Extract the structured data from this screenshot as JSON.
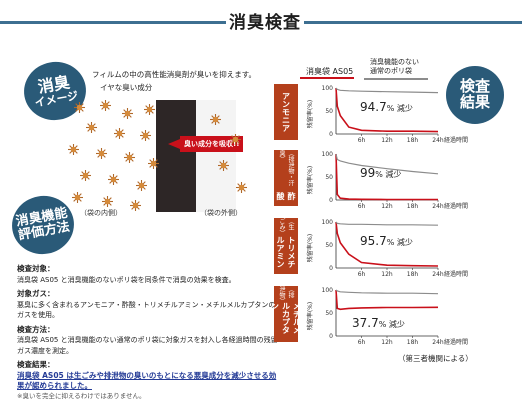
{
  "header": {
    "title": "消臭検査"
  },
  "badges": {
    "image_line1": "消臭",
    "image_line2": "イメージ",
    "method_line1": "消臭機能",
    "method_line2": "評価方法",
    "result_line1": "検査",
    "result_line2": "結果"
  },
  "image": {
    "line1": "フィルムの中の高性能消臭剤が臭いを抑えます。",
    "line2": "イヤな臭い成分",
    "absorb": "臭い成分を吸収!!",
    "inside": "（袋の内側）",
    "outside": "（袋の外側）"
  },
  "method": {
    "sections": [
      {
        "h": "検査対象：",
        "body": "消臭袋 AS05 と消臭機能のないポリ袋を同条件で消臭の効果を検査。"
      },
      {
        "h": "対象ガス：",
        "body": "悪臭に多く含まれるアンモニア・酢酸・トリメチルアミン・メチルメルカプタンのガスを使用。"
      },
      {
        "h": "検査方法：",
        "body": "消臭袋 AS05 と消臭機能のない通常のポリ袋に対象ガスを封入し各経過時間の残留ガス濃度を測定。"
      }
    ],
    "result_h": "検査結果：",
    "result_body": "消臭袋 AS05 は生ごみや排泄物の臭いのもとになる悪臭成分を減少させる効果が認められました。",
    "note": "※臭いを完全に抑えるわけではありません。"
  },
  "legend": {
    "a": "消臭袋 AS05",
    "b_line1": "消臭機能のない",
    "b_line2": "通常のポリ袋"
  },
  "source": "（第三者機関による）",
  "colors": {
    "accent": "#2a5a78",
    "red": "#c9101a",
    "label": "#b4401c",
    "gray": "#8c8c8c"
  },
  "chart_data": [
    {
      "type": "line",
      "label": "アンモニア",
      "sub": "",
      "reduction_num": "94.7",
      "reduction_unit": "% 減少",
      "ylabel": "残留率(%)",
      "xlabel": "経過時間",
      "yticks": [
        "100",
        "50",
        "0"
      ],
      "xticks": [
        "6h",
        "12h",
        "18h",
        "24h"
      ],
      "ylim": [
        0,
        100
      ],
      "x": [
        0,
        0.3,
        1,
        3,
        6,
        12,
        18,
        24
      ],
      "series": [
        {
          "name": "消臭袋 AS05",
          "values": [
            100,
            60,
            40,
            15,
            8,
            6,
            6,
            5.3
          ]
        },
        {
          "name": "通常のポリ袋",
          "values": [
            100,
            97,
            95,
            94,
            93,
            92,
            91,
            90
          ]
        }
      ]
    },
    {
      "type": "line",
      "label": "酢酸",
      "sub": "（排泄物・汗臭）",
      "reduction_num": "99",
      "reduction_unit": "% 減少",
      "ylabel": "残留率(%)",
      "xlabel": "経過時間",
      "yticks": [
        "100",
        "50",
        "0"
      ],
      "xticks": [
        "6h",
        "12h",
        "18h",
        "24h"
      ],
      "ylim": [
        0,
        100
      ],
      "x": [
        0,
        0.3,
        1,
        3,
        6,
        12,
        18,
        24
      ],
      "series": [
        {
          "name": "消臭袋 AS05",
          "values": [
            100,
            12,
            4,
            2,
            1.5,
            1,
            1,
            1
          ]
        },
        {
          "name": "通常のポリ袋",
          "values": [
            100,
            88,
            85,
            80,
            75,
            68,
            62,
            57
          ]
        }
      ]
    },
    {
      "type": "line",
      "label": "トリメチルアミン",
      "sub": "（生ごみ）",
      "reduction_num": "95.7",
      "reduction_unit": "% 減少",
      "ylabel": "残留率(%)",
      "xlabel": "経過時間",
      "yticks": [
        "100",
        "50",
        "0"
      ],
      "xticks": [
        "6h",
        "12h",
        "18h",
        "24h"
      ],
      "ylim": [
        0,
        100
      ],
      "x": [
        0,
        0.3,
        1,
        3,
        6,
        12,
        18,
        24
      ],
      "series": [
        {
          "name": "消臭袋 AS05",
          "values": [
            100,
            75,
            55,
            30,
            12,
            6,
            5,
            4.3
          ]
        },
        {
          "name": "通常のポリ袋",
          "values": [
            100,
            97,
            96,
            95,
            95,
            94,
            94,
            93
          ]
        }
      ]
    },
    {
      "type": "line",
      "label": "メチルメルカプタン",
      "sub": "（排泄物）",
      "reduction_num": "37.7",
      "reduction_unit": "% 減少",
      "ylabel": "残留率(%)",
      "xlabel": "経過時間",
      "yticks": [
        "100",
        "50",
        "0"
      ],
      "xticks": [
        "6h",
        "12h",
        "18h",
        "24h"
      ],
      "ylim": [
        0,
        100
      ],
      "x": [
        0,
        0.3,
        1,
        3,
        6,
        12,
        18,
        24
      ],
      "series": [
        {
          "name": "消臭袋 AS05",
          "values": [
            100,
            60,
            58,
            60,
            61,
            62,
            62,
            62.3
          ]
        },
        {
          "name": "通常のポリ袋",
          "values": [
            100,
            98,
            96,
            95,
            94,
            93,
            93,
            92
          ]
        }
      ]
    }
  ]
}
